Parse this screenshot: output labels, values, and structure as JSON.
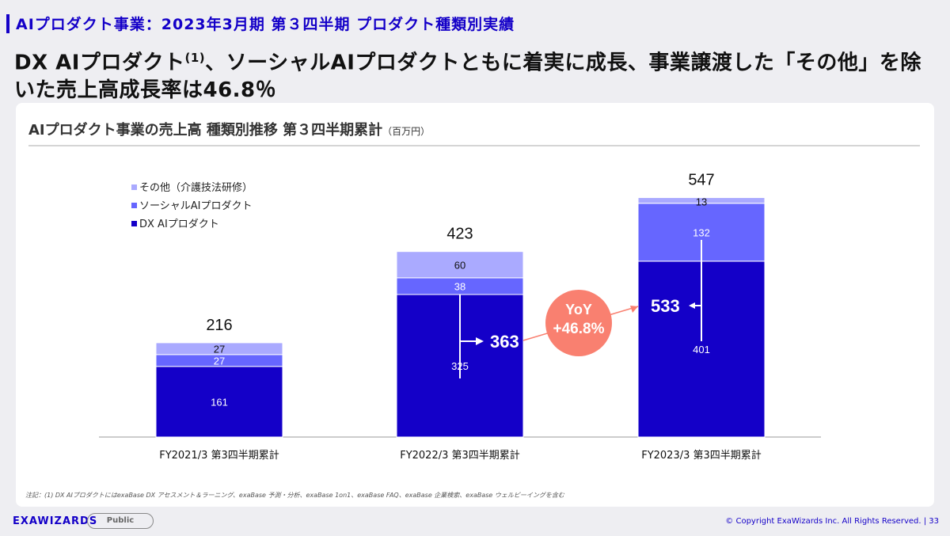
{
  "header": {
    "subtitle": "AIプロダクト事業：2023年3月期 第３四半期 プロダクト種類別実績",
    "headline_a": "DX AIプロダクト",
    "headline_sup": "(1)",
    "headline_b": "、ソーシャルAIプロダクトともに着実に成長、事業譲渡した「その他」を除いた売上高成長率は46.8％"
  },
  "card": {
    "title": "AIプロダクト事業の売上高 種類別推移 第３四半期累計",
    "unit": "（百万円）",
    "note": "注記：(1) DX AIプロダクトにはexaBase DX アセスメント＆ラーニング、exaBase 予測・分析、exaBase 1on1、exaBase FAQ、exaBase 企業検索、exaBase ウェルビーイングを含む"
  },
  "chart_data": {
    "type": "bar",
    "stacked": true,
    "categories": [
      "FY2021/3 第3四半期累計",
      "FY2022/3 第3四半期累計",
      "FY2023/3 第3四半期累計"
    ],
    "series": [
      {
        "name": "DX AIプロダクト",
        "values": [
          161,
          325,
          401
        ],
        "color": "#1400c8",
        "label_color": "#ffffff"
      },
      {
        "name": "ソーシャルAIプロダクト",
        "values": [
          27,
          38,
          132
        ],
        "color": "#6666ff",
        "label_color": "#ffffff"
      },
      {
        "name": "その他（介護技法研修）",
        "values": [
          27,
          60,
          13
        ],
        "color": "#aaaaff",
        "label_color": "#111111"
      }
    ],
    "totals": [
      216,
      423,
      547
    ],
    "subtotals_excl_other": {
      "FY2022/3 第3四半期累計": 363,
      "FY2023/3 第3四半期累計": 533
    },
    "yoy": {
      "label": "YoY",
      "value": "+46.8%",
      "color": "#f98070"
    },
    "ylim": [
      0,
      547
    ],
    "legend": "top-left",
    "grid": false
  },
  "footer": {
    "logo": "EXAWIZARDS",
    "badge": "Public",
    "copyright": "© Copyright ExaWizards Inc. All Rights Reserved.  |  33"
  }
}
